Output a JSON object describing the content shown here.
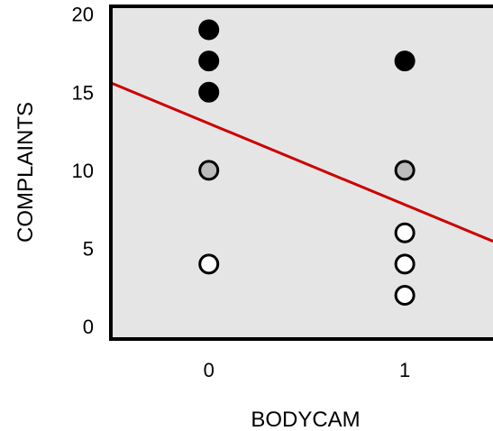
{
  "chart_data": {
    "type": "scatter",
    "title": "",
    "xlabel": "BODYCAM",
    "ylabel": "COMPLAINTS",
    "xlim": [
      -0.5,
      1.45
    ],
    "ylim": [
      -0.8,
      20.5
    ],
    "x_ticks": [
      0,
      1
    ],
    "y_ticks": [
      0,
      5,
      10,
      15,
      20
    ],
    "x_tick_labels": [
      "0",
      "1"
    ],
    "y_tick_labels": [
      "0",
      "5",
      "10",
      "15",
      "20"
    ],
    "grid": false,
    "legend": "none",
    "background_color": "#e5e5e5",
    "line_color": "#cc0000",
    "points": [
      {
        "x": 0,
        "y": 19,
        "fill": "#000000"
      },
      {
        "x": 0,
        "y": 17,
        "fill": "#000000"
      },
      {
        "x": 0,
        "y": 15,
        "fill": "#000000"
      },
      {
        "x": 0,
        "y": 10,
        "fill": "#bbbbbb"
      },
      {
        "x": 0,
        "y": 4,
        "fill": "#ffffff"
      },
      {
        "x": 1,
        "y": 17,
        "fill": "#000000"
      },
      {
        "x": 1,
        "y": 10,
        "fill": "#bbbbbb"
      },
      {
        "x": 1,
        "y": 6,
        "fill": "#ffffff"
      },
      {
        "x": 1,
        "y": 4,
        "fill": "#ffffff"
      },
      {
        "x": 1,
        "y": 2,
        "fill": "#ffffff"
      }
    ],
    "regression_line": {
      "intercept": 13,
      "slope": -5.2
    }
  }
}
